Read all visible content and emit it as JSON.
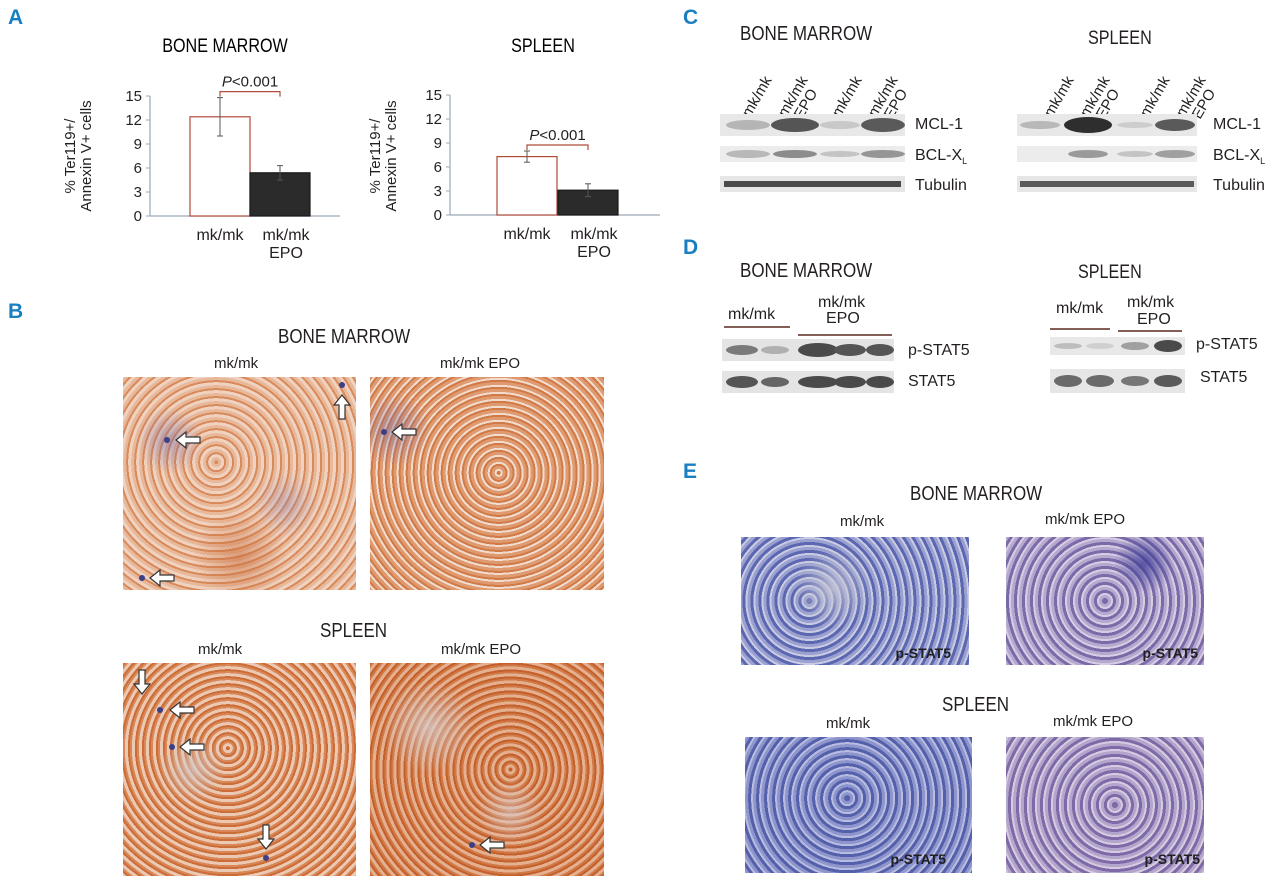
{
  "panels": {
    "A": {
      "letter": "A",
      "ylabel_line1": "% Ter119+/",
      "ylabel_line2": "Annexin V+ cells",
      "charts": [
        {
          "title": "BONE MARROW",
          "pvalue_p": "P",
          "pvalue_rest": "<0.001",
          "xlabels": [
            "mk/mk",
            "mk/mk",
            "EPO"
          ]
        },
        {
          "title": "SPLEEN",
          "pvalue_p": "P",
          "pvalue_rest": "<0.001",
          "xlabels": [
            "mk/mk",
            "mk/mk",
            "EPO"
          ]
        }
      ]
    },
    "B": {
      "letter": "B",
      "bm_title": "BONE MARROW",
      "spleen_title": "SPLEEN",
      "col_left": "mk/mk",
      "col_right": "mk/mk EPO"
    },
    "C": {
      "letter": "C",
      "bm_title": "BONE MARROW",
      "spleen_title": "SPLEEN",
      "lanes": [
        "mk/mk",
        "mk/mk\nEPO",
        "mk/mk",
        "mk/mk\nEPO"
      ],
      "rows": [
        "MCL-1",
        "BCL-X",
        "Tubulin"
      ],
      "bcl_sub": "L"
    },
    "D": {
      "letter": "D",
      "bm_title": "BONE MARROW",
      "spleen_title": "SPLEEN",
      "group_left": "mk/mk",
      "group_right_1": "mk/mk",
      "group_right_2": "EPO",
      "rows": [
        "p-STAT5",
        "STAT5"
      ]
    },
    "E": {
      "letter": "E",
      "bm_title": "BONE MARROW",
      "spleen_title": "SPLEEN",
      "col_left": "mk/mk",
      "col_right": "mk/mk EPO",
      "tag": "p-STAT5"
    }
  },
  "chart_data": [
    {
      "type": "bar",
      "title": "BONE MARROW",
      "ylabel": "% Ter119+/ Annexin V+ cells",
      "categories": [
        "mk/mk",
        "mk/mk EPO"
      ],
      "values": [
        12.4,
        5.4
      ],
      "errors": [
        2.4,
        0.9
      ],
      "bar_colors": [
        "#ffffff",
        "#2b2b2b"
      ],
      "ylim": [
        0,
        15
      ],
      "yticks": [
        0,
        3,
        6,
        9,
        12,
        15
      ],
      "annotation": "P<0.001"
    },
    {
      "type": "bar",
      "title": "SPLEEN",
      "ylabel": "% Ter119+/ Annexin V+ cells",
      "categories": [
        "mk/mk",
        "mk/mk EPO"
      ],
      "values": [
        7.3,
        3.1
      ],
      "errors": [
        0.7,
        0.8
      ],
      "bar_colors": [
        "#ffffff",
        "#2b2b2b"
      ],
      "ylim": [
        0,
        15
      ],
      "yticks": [
        0,
        3,
        6,
        9,
        12,
        15
      ],
      "annotation": "P<0.001"
    }
  ],
  "colors": {
    "panel_letter": "#1a7fc1",
    "axis": "#9aa8b6",
    "bar_outline": "#b04a3a",
    "ihc_brown": "#c46a3a",
    "ihc_blue": "#5b67b0"
  }
}
